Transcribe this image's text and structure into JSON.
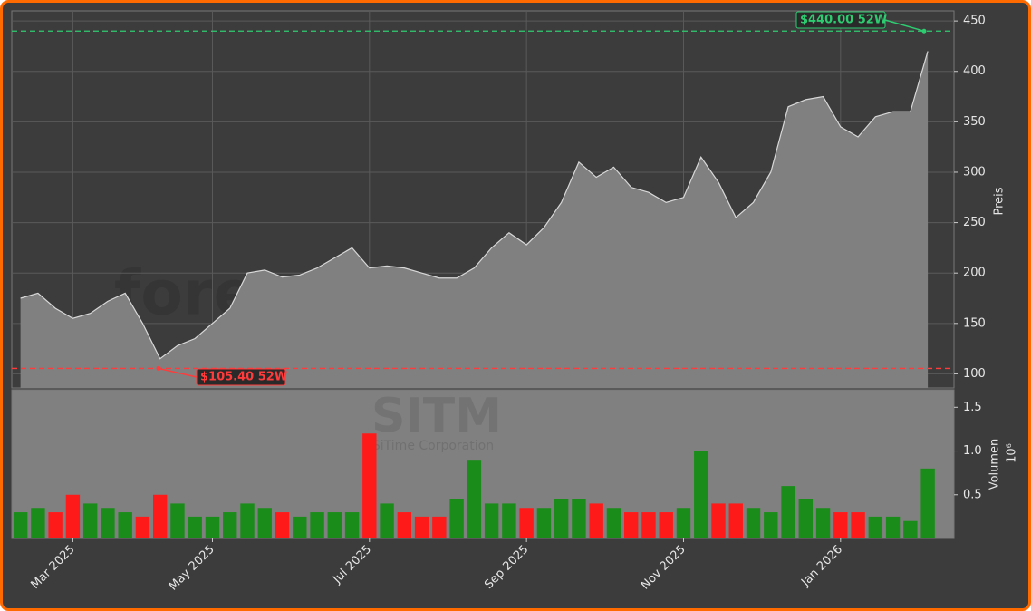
{
  "chart_data": [
    {
      "type": "area",
      "y_label": "Preis",
      "color": "#808080",
      "line_color": "#d8d8d8",
      "values": [
        175,
        180,
        165,
        155,
        160,
        172,
        180,
        150,
        115,
        128,
        135,
        150,
        165,
        200,
        203,
        196,
        198,
        205,
        215,
        225,
        205,
        207,
        205,
        200,
        195,
        195,
        205,
        225,
        240,
        228,
        245,
        270,
        310,
        295,
        305,
        285,
        280,
        270,
        275,
        315,
        290,
        255,
        270,
        300,
        365,
        372,
        375,
        345,
        335,
        355,
        360,
        360,
        420
      ],
      "ylim": [
        86,
        460
      ],
      "yticks": [
        100,
        150,
        200,
        250,
        300,
        350,
        400,
        450
      ],
      "grid": true,
      "high_52w": {
        "value": 440,
        "label": "$440.00 52W",
        "color": "#2ecc71"
      },
      "low_52w": {
        "value": 105.4,
        "label": "$105.40 52W",
        "color": "#ff3b3b"
      },
      "watermark": "forexsignale.trade"
    },
    {
      "type": "bar",
      "y_label": "Volumen",
      "y_exponent": "10⁶",
      "up_color": "#1a8c1a",
      "down_color": "#ff1a1a",
      "ticker": "SITM",
      "company": "SiTime Corporation",
      "categories": [
        null,
        null,
        null,
        "Mar 2025",
        null,
        null,
        null,
        null,
        null,
        null,
        null,
        "May 2025",
        null,
        null,
        null,
        null,
        null,
        null,
        null,
        null,
        "Jul 2025",
        null,
        null,
        null,
        null,
        null,
        null,
        null,
        null,
        "Sep 2025",
        null,
        null,
        null,
        null,
        null,
        null,
        null,
        null,
        "Nov 2025",
        null,
        null,
        null,
        null,
        null,
        null,
        null,
        null,
        "Jan 2026",
        null,
        null,
        null,
        null,
        null
      ],
      "values": [
        0.3,
        0.35,
        0.3,
        0.5,
        0.4,
        0.35,
        0.3,
        0.25,
        0.5,
        0.4,
        0.25,
        0.25,
        0.3,
        0.4,
        0.35,
        0.3,
        0.25,
        0.3,
        0.3,
        0.3,
        1.2,
        0.4,
        0.3,
        0.25,
        0.25,
        0.45,
        0.9,
        0.4,
        0.4,
        0.35,
        0.35,
        0.45,
        0.45,
        0.4,
        0.35,
        0.3,
        0.3,
        0.3,
        0.35,
        1.0,
        0.4,
        0.4,
        0.35,
        0.3,
        0.6,
        0.45,
        0.35,
        0.3,
        0.3,
        0.25,
        0.25,
        0.2,
        0.8
      ],
      "ylim": [
        0,
        1.7
      ],
      "yticks": [
        0.5,
        {
          "value": 1,
          "label": "1.0"
        },
        1.5
      ]
    }
  ]
}
